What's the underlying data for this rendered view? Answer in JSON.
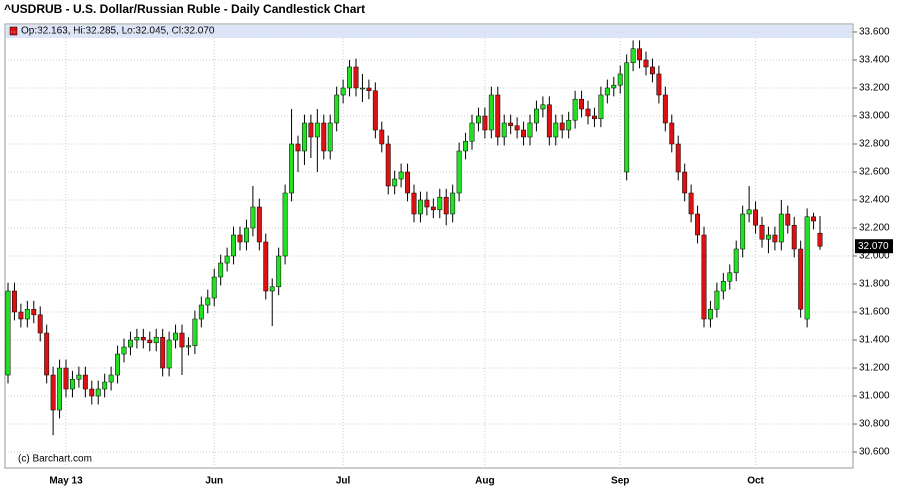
{
  "chart_data": {
    "type": "candlestick",
    "title": "^USDRUB - U.S. Dollar/Russian Ruble - Daily Candlestick Chart",
    "ohlc_label": "Op:32.163, Hi:32.285, Lo:32.045, Cl:32.070",
    "credit": "(c) Barchart.com",
    "last_price": {
      "value": 32.07,
      "label": "32.070"
    },
    "up_color": "#22e022",
    "down_color": "#dd1111",
    "categories": [
      null,
      null,
      null,
      null,
      null,
      null,
      null,
      null,
      null,
      "May 13",
      null,
      null,
      null,
      null,
      null,
      null,
      null,
      null,
      null,
      null,
      null,
      null,
      null,
      null,
      null,
      null,
      null,
      null,
      null,
      null,
      null,
      null,
      "Jun",
      null,
      null,
      null,
      null,
      null,
      null,
      null,
      null,
      null,
      null,
      null,
      null,
      null,
      null,
      null,
      null,
      null,
      null,
      null,
      "Jul",
      null,
      null,
      null,
      null,
      null,
      null,
      null,
      null,
      null,
      null,
      null,
      null,
      null,
      null,
      null,
      null,
      null,
      null,
      null,
      null,
      null,
      "Aug",
      null,
      null,
      null,
      null,
      null,
      null,
      null,
      null,
      null,
      null,
      null,
      null,
      null,
      null,
      null,
      null,
      null,
      null,
      null,
      null,
      "Sep",
      null,
      null,
      null,
      null,
      null,
      null,
      null,
      null,
      null,
      null,
      null,
      null,
      null,
      null,
      null,
      null,
      null,
      null,
      null,
      null,
      "Oct",
      null,
      null,
      null,
      null,
      null,
      null,
      null,
      null,
      null,
      null
    ],
    "open": [
      31.15,
      31.75,
      31.6,
      31.55,
      31.62,
      31.58,
      31.45,
      31.15,
      30.9,
      31.2,
      31.05,
      31.12,
      31.15,
      31.05,
      31.0,
      31.05,
      31.1,
      31.15,
      31.3,
      31.35,
      31.4,
      31.42,
      31.4,
      31.38,
      31.42,
      31.2,
      31.4,
      31.45,
      31.35,
      31.36,
      31.55,
      31.65,
      31.7,
      31.85,
      31.95,
      32.0,
      32.15,
      32.1,
      32.2,
      32.35,
      32.1,
      31.75,
      31.78,
      32.0,
      32.45,
      32.8,
      32.75,
      32.95,
      32.85,
      32.95,
      32.75,
      32.95,
      33.15,
      33.2,
      33.35,
      33.2,
      33.2,
      33.18,
      32.9,
      32.8,
      32.5,
      32.55,
      32.6,
      32.45,
      32.3,
      32.4,
      32.35,
      32.33,
      32.42,
      32.3,
      32.45,
      32.75,
      32.82,
      32.95,
      33.0,
      32.9,
      33.15,
      32.85,
      32.95,
      32.93,
      32.9,
      32.85,
      32.95,
      33.05,
      33.08,
      32.85,
      32.95,
      32.9,
      32.97,
      33.12,
      33.05,
      33.0,
      32.98,
      33.15,
      33.2,
      33.22,
      32.6,
      33.38,
      33.48,
      33.4,
      33.35,
      33.3,
      33.15,
      32.95,
      32.8,
      32.6,
      32.45,
      32.3,
      32.15,
      31.55,
      31.62,
      31.75,
      31.82,
      31.88,
      32.05,
      32.3,
      32.33,
      32.22,
      32.12,
      32.15,
      32.1,
      32.3,
      32.22,
      32.05,
      31.55,
      32.28,
      32.163
    ],
    "high": [
      31.81,
      31.81,
      31.66,
      31.68,
      31.68,
      31.64,
      31.51,
      31.21,
      31.26,
      31.26,
      31.18,
      31.21,
      31.21,
      31.11,
      31.11,
      31.16,
      31.21,
      31.36,
      31.41,
      31.46,
      31.48,
      31.48,
      31.46,
      31.48,
      31.48,
      31.46,
      31.51,
      31.51,
      31.42,
      31.61,
      31.71,
      31.76,
      31.91,
      32.01,
      32.06,
      32.21,
      32.21,
      32.26,
      32.5,
      32.41,
      32.16,
      31.84,
      32.06,
      32.51,
      33.05,
      32.86,
      33.01,
      33.01,
      33.05,
      33.01,
      33.01,
      33.21,
      33.26,
      33.4,
      33.41,
      33.3,
      33.26,
      33.24,
      32.96,
      32.86,
      32.61,
      32.66,
      32.66,
      32.51,
      32.46,
      32.46,
      32.41,
      32.48,
      32.48,
      32.51,
      32.81,
      32.88,
      33.01,
      33.06,
      33.06,
      33.21,
      33.21,
      33.01,
      33.01,
      32.99,
      32.96,
      33.01,
      33.11,
      33.14,
      33.14,
      33.01,
      33.01,
      33.03,
      33.18,
      33.18,
      33.11,
      33.06,
      33.21,
      33.26,
      33.28,
      33.36,
      33.44,
      33.54,
      33.54,
      33.46,
      33.41,
      33.36,
      33.21,
      33.01,
      32.86,
      32.66,
      32.51,
      32.36,
      32.21,
      31.68,
      31.81,
      31.88,
      31.94,
      32.11,
      32.36,
      32.5,
      32.39,
      32.28,
      32.21,
      32.21,
      32.4,
      32.36,
      32.28,
      32.11,
      32.34,
      32.31,
      32.285
    ],
    "low": [
      31.09,
      31.54,
      31.49,
      31.49,
      31.52,
      31.39,
      31.09,
      30.72,
      30.84,
      30.99,
      30.99,
      31.06,
      30.99,
      30.94,
      30.94,
      30.99,
      31.04,
      31.09,
      31.24,
      31.29,
      31.34,
      31.34,
      31.32,
      31.32,
      31.14,
      31.14,
      31.34,
      31.15,
      31.29,
      31.3,
      31.49,
      31.59,
      31.64,
      31.79,
      31.89,
      31.94,
      32.04,
      32.04,
      32.14,
      32.04,
      31.69,
      31.5,
      31.72,
      31.94,
      32.39,
      32.6,
      32.65,
      32.7,
      32.6,
      32.69,
      32.69,
      32.89,
      33.09,
      33.14,
      33.14,
      33.1,
      33.12,
      32.84,
      32.74,
      32.44,
      32.44,
      32.49,
      32.39,
      32.24,
      32.24,
      32.29,
      32.27,
      32.27,
      32.22,
      32.24,
      32.39,
      32.69,
      32.76,
      32.89,
      32.84,
      32.84,
      32.79,
      32.79,
      32.87,
      32.84,
      32.79,
      32.79,
      32.89,
      32.99,
      32.79,
      32.79,
      32.84,
      32.84,
      32.91,
      32.99,
      32.94,
      32.92,
      32.92,
      33.09,
      33.14,
      33.16,
      32.54,
      33.32,
      33.34,
      33.29,
      33.24,
      33.09,
      32.89,
      32.74,
      32.54,
      32.39,
      32.24,
      32.09,
      31.49,
      31.49,
      31.56,
      31.69,
      31.76,
      31.82,
      31.99,
      32.24,
      32.16,
      32.06,
      32.02,
      32.04,
      32.04,
      32.16,
      31.99,
      31.56,
      31.49,
      32.19,
      32.045
    ],
    "close": [
      31.75,
      31.6,
      31.55,
      31.62,
      31.58,
      31.45,
      31.15,
      30.9,
      31.2,
      31.05,
      31.12,
      31.15,
      31.05,
      31.0,
      31.05,
      31.1,
      31.15,
      31.3,
      31.35,
      31.4,
      31.42,
      31.4,
      31.38,
      31.42,
      31.2,
      31.4,
      31.45,
      31.35,
      31.36,
      31.55,
      31.65,
      31.7,
      31.85,
      31.95,
      32.0,
      32.15,
      32.1,
      32.2,
      32.35,
      32.1,
      31.75,
      31.78,
      32.0,
      32.45,
      32.8,
      32.75,
      32.95,
      32.85,
      32.95,
      32.75,
      32.95,
      33.15,
      33.2,
      33.35,
      33.2,
      33.2,
      33.18,
      32.9,
      32.8,
      32.5,
      32.55,
      32.6,
      32.45,
      32.3,
      32.4,
      32.35,
      32.33,
      32.42,
      32.3,
      32.45,
      32.75,
      32.82,
      32.95,
      33.0,
      32.9,
      33.15,
      32.85,
      32.95,
      32.93,
      32.9,
      32.85,
      32.95,
      33.05,
      33.08,
      32.85,
      32.95,
      32.9,
      32.97,
      33.12,
      33.05,
      33.0,
      32.98,
      33.15,
      33.2,
      33.22,
      33.3,
      33.38,
      33.48,
      33.4,
      33.35,
      33.3,
      33.15,
      32.95,
      32.8,
      32.6,
      32.45,
      32.3,
      32.15,
      31.55,
      31.62,
      31.75,
      31.82,
      31.88,
      32.05,
      32.3,
      32.33,
      32.22,
      32.12,
      32.15,
      32.1,
      32.3,
      32.22,
      32.05,
      31.62,
      32.28,
      32.25,
      32.07
    ],
    "ylim": [
      30.486,
      33.657
    ],
    "yticks": [
      {
        "value": 30.6,
        "label": "30.600"
      },
      {
        "value": 30.8,
        "label": "30.800"
      },
      {
        "value": 31.0,
        "label": "31.000"
      },
      {
        "value": 31.2,
        "label": "31.200"
      },
      {
        "value": 31.4,
        "label": "31.400"
      },
      {
        "value": 31.6,
        "label": "31.600"
      },
      {
        "value": 31.8,
        "label": "31.800"
      },
      {
        "value": 32.0,
        "label": "32.000"
      },
      {
        "value": 32.2,
        "label": "32.200"
      },
      {
        "value": 32.4,
        "label": "32.400"
      },
      {
        "value": 32.6,
        "label": "32.600"
      },
      {
        "value": 32.8,
        "label": "32.800"
      },
      {
        "value": 33.0,
        "label": "33.000"
      },
      {
        "value": 33.2,
        "label": "33.200"
      },
      {
        "value": 33.4,
        "label": "33.400"
      },
      {
        "value": 33.6,
        "label": "33.600"
      }
    ],
    "grid": true
  }
}
